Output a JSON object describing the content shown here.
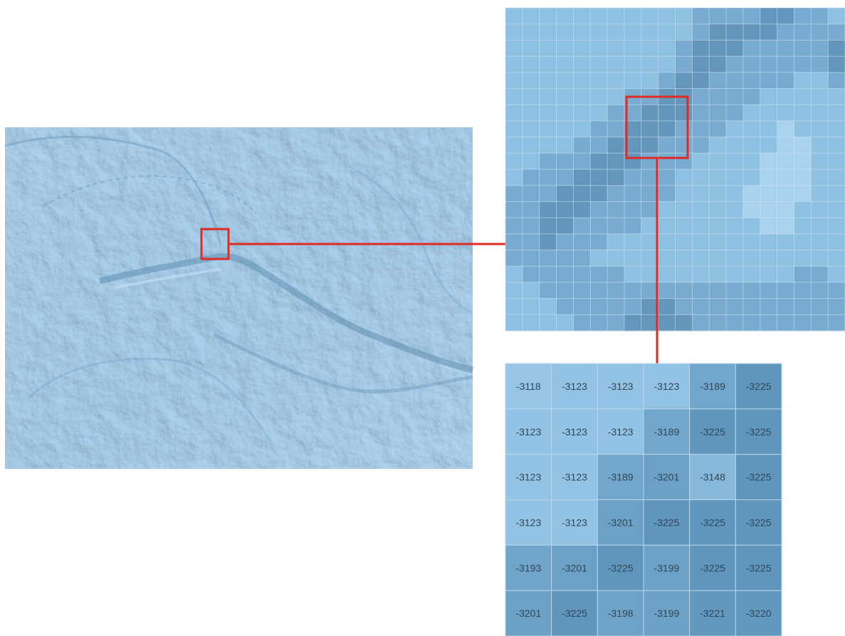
{
  "colors": {
    "map_base": "#8dbfe0",
    "map_dark": "#5f93b7",
    "map_light": "#b5d8ef",
    "grid_line": "#cfe6f5",
    "highlight": "#e02a24",
    "cell_text": "#2f4656"
  },
  "zoom_grid": {
    "columns": 20,
    "rows": 20,
    "shade_levels": [
      [
        1,
        1,
        1,
        1,
        1,
        1,
        1,
        1,
        1,
        1,
        1,
        2,
        2,
        2,
        2,
        3,
        3,
        2,
        2,
        1
      ],
      [
        1,
        1,
        1,
        1,
        1,
        1,
        1,
        1,
        1,
        1,
        1,
        2,
        3,
        3,
        3,
        3,
        2,
        2,
        2,
        2
      ],
      [
        1,
        1,
        1,
        1,
        1,
        1,
        1,
        1,
        1,
        1,
        2,
        3,
        3,
        3,
        2,
        2,
        2,
        2,
        2,
        3
      ],
      [
        1,
        1,
        1,
        1,
        1,
        1,
        1,
        1,
        1,
        1,
        2,
        3,
        3,
        2,
        2,
        2,
        2,
        2,
        2,
        3
      ],
      [
        1,
        1,
        1,
        1,
        1,
        1,
        1,
        1,
        1,
        2,
        3,
        3,
        2,
        2,
        2,
        2,
        2,
        1,
        1,
        2
      ],
      [
        1,
        1,
        1,
        1,
        1,
        1,
        1,
        2,
        2,
        3,
        3,
        2,
        2,
        2,
        2,
        1,
        1,
        1,
        1,
        1
      ],
      [
        1,
        1,
        1,
        1,
        1,
        1,
        2,
        2,
        3,
        3,
        3,
        2,
        2,
        2,
        1,
        1,
        1,
        1,
        1,
        1
      ],
      [
        1,
        1,
        1,
        1,
        1,
        2,
        2,
        3,
        3,
        3,
        2,
        2,
        2,
        1,
        1,
        1,
        0,
        1,
        1,
        1
      ],
      [
        1,
        1,
        1,
        1,
        2,
        2,
        3,
        3,
        3,
        2,
        2,
        2,
        1,
        1,
        1,
        1,
        0,
        0,
        1,
        1
      ],
      [
        1,
        1,
        2,
        2,
        2,
        3,
        3,
        3,
        2,
        2,
        2,
        1,
        1,
        1,
        1,
        0,
        0,
        0,
        1,
        1
      ],
      [
        1,
        2,
        2,
        2,
        3,
        3,
        3,
        2,
        2,
        2,
        1,
        1,
        1,
        1,
        1,
        0,
        0,
        0,
        1,
        1
      ],
      [
        2,
        2,
        2,
        3,
        3,
        3,
        2,
        2,
        2,
        2,
        1,
        1,
        1,
        1,
        0,
        0,
        0,
        0,
        1,
        1
      ],
      [
        2,
        2,
        3,
        3,
        3,
        2,
        2,
        2,
        2,
        1,
        1,
        1,
        1,
        1,
        0,
        0,
        0,
        1,
        1,
        1
      ],
      [
        2,
        2,
        3,
        3,
        2,
        2,
        2,
        2,
        1,
        1,
        1,
        1,
        1,
        1,
        1,
        0,
        0,
        1,
        1,
        1
      ],
      [
        2,
        2,
        3,
        2,
        2,
        2,
        1,
        1,
        1,
        1,
        1,
        1,
        1,
        1,
        1,
        1,
        1,
        1,
        1,
        1
      ],
      [
        2,
        2,
        2,
        2,
        2,
        1,
        1,
        1,
        1,
        1,
        1,
        1,
        1,
        1,
        1,
        1,
        1,
        1,
        1,
        1
      ],
      [
        1,
        2,
        2,
        2,
        2,
        2,
        2,
        1,
        1,
        1,
        1,
        1,
        1,
        1,
        1,
        1,
        1,
        2,
        2,
        1
      ],
      [
        1,
        1,
        2,
        2,
        2,
        2,
        2,
        2,
        2,
        2,
        2,
        2,
        2,
        2,
        2,
        2,
        2,
        2,
        2,
        2
      ],
      [
        1,
        1,
        1,
        2,
        2,
        2,
        2,
        2,
        3,
        3,
        2,
        2,
        2,
        2,
        2,
        2,
        2,
        2,
        2,
        2
      ],
      [
        1,
        1,
        1,
        1,
        2,
        2,
        2,
        3,
        3,
        3,
        3,
        2,
        2,
        2,
        2,
        2,
        2,
        2,
        2,
        2
      ]
    ]
  },
  "value_grid": {
    "rows": [
      [
        "-3118",
        "-3123",
        "-3123",
        "-3123",
        "-3189",
        "-3225"
      ],
      [
        "-3123",
        "-3123",
        "-3123",
        "-3189",
        "-3225",
        "-3225"
      ],
      [
        "-3123",
        "-3123",
        "-3189",
        "-3201",
        "-3148",
        "-3225"
      ],
      [
        "-3123",
        "-3123",
        "-3201",
        "-3225",
        "-3225",
        "-3225"
      ],
      [
        "-3193",
        "-3201",
        "-3225",
        "-3199",
        "-3225",
        "-3225"
      ],
      [
        "-3201",
        "-3225",
        "-3198",
        "-3199",
        "-3221",
        "-3220"
      ]
    ]
  }
}
